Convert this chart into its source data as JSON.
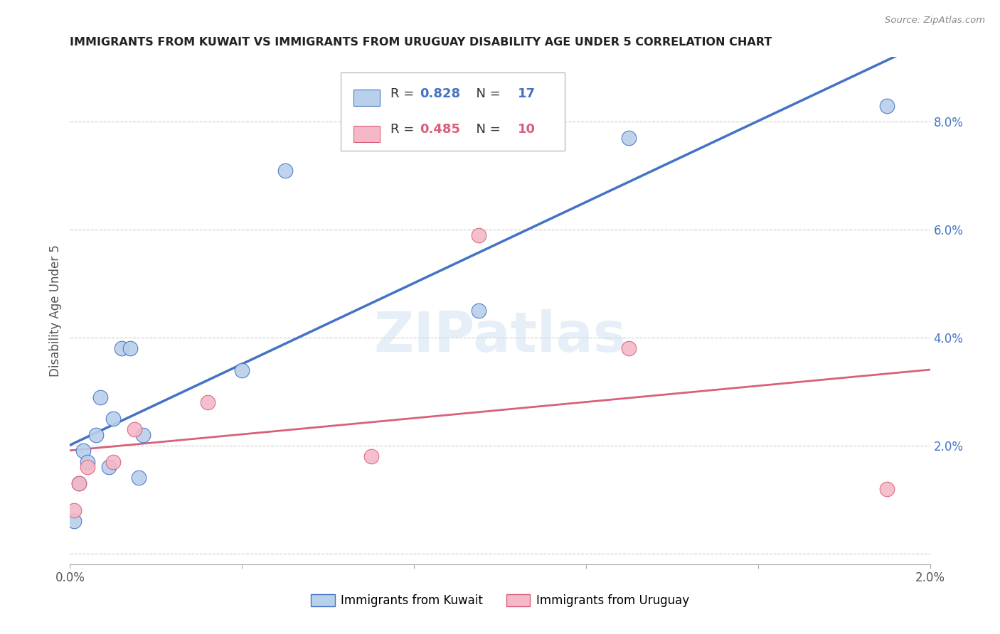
{
  "title": "IMMIGRANTS FROM KUWAIT VS IMMIGRANTS FROM URUGUAY DISABILITY AGE UNDER 5 CORRELATION CHART",
  "source": "Source: ZipAtlas.com",
  "ylabel": "Disability Age Under 5",
  "watermark": "ZIPatlas",
  "xlim": [
    0.0,
    0.02
  ],
  "ylim": [
    -0.002,
    0.092
  ],
  "xticks": [
    0.0,
    0.004,
    0.008,
    0.012,
    0.016,
    0.02
  ],
  "xtick_labels": [
    "0.0%",
    "",
    "",
    "",
    "",
    "2.0%"
  ],
  "yticks_right": [
    0.0,
    0.02,
    0.04,
    0.06,
    0.08
  ],
  "ytick_labels_right": [
    "",
    "2.0%",
    "4.0%",
    "6.0%",
    "8.0%"
  ],
  "kuwait_R": 0.828,
  "kuwait_N": 17,
  "uruguay_R": 0.485,
  "uruguay_N": 10,
  "kuwait_color": "#b8d0ea",
  "kuwait_line_color": "#4472c4",
  "uruguay_color": "#f4b8c8",
  "uruguay_line_color": "#d9607a",
  "kuwait_x": [
    0.0001,
    0.0002,
    0.0003,
    0.0004,
    0.0006,
    0.0007,
    0.0009,
    0.001,
    0.0012,
    0.0014,
    0.0016,
    0.0017,
    0.004,
    0.005,
    0.0095,
    0.013,
    0.019
  ],
  "kuwait_y": [
    0.006,
    0.013,
    0.019,
    0.017,
    0.022,
    0.029,
    0.016,
    0.025,
    0.038,
    0.038,
    0.014,
    0.022,
    0.034,
    0.071,
    0.045,
    0.077,
    0.083
  ],
  "uruguay_x": [
    0.0001,
    0.0002,
    0.0004,
    0.001,
    0.0015,
    0.0032,
    0.007,
    0.0095,
    0.013,
    0.019
  ],
  "uruguay_y": [
    0.008,
    0.013,
    0.016,
    0.017,
    0.023,
    0.028,
    0.018,
    0.059,
    0.038,
    0.012
  ],
  "background_color": "#ffffff",
  "grid_color": "#cccccc",
  "legend_R_eq_color": "#333333",
  "legend_val_color": "#4472c4"
}
